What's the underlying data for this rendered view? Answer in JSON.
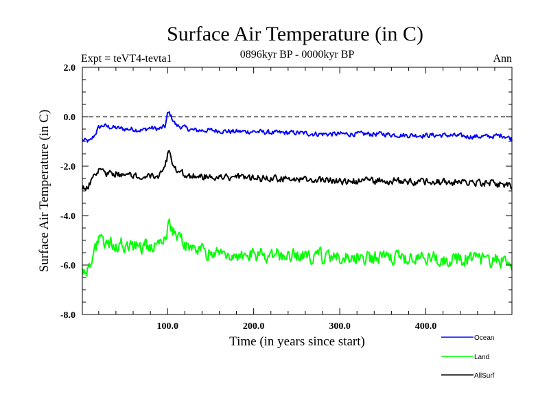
{
  "chart_data": {
    "type": "line",
    "title": "Surface Air Temperature (in C)",
    "subtitle": "0896kyr BP - 0000kyr BP",
    "experiment_label": "Expt = teVT4-tevta1",
    "period_label": "Ann",
    "xlabel": "Time (in years since start)",
    "ylabel": "Surface Air Temperature (in C)",
    "xlim": [
      1,
      500
    ],
    "ylim": [
      -8.0,
      2.0
    ],
    "x_ticks": [
      100,
      200,
      300,
      400
    ],
    "x_tick_labels": [
      "100.0",
      "200.0",
      "300.0",
      "400.0"
    ],
    "y_ticks": [
      2,
      0,
      -2,
      -4,
      -6,
      -8
    ],
    "y_tick_labels": [
      "2.0",
      "0.0",
      "-2.0",
      "-4.0",
      "-6.0",
      "-8.0"
    ],
    "reference_line": 0.0,
    "series": [
      {
        "name": "Ocean",
        "color": "#0000ff",
        "x": [
          1,
          10,
          15,
          20,
          25,
          30,
          40,
          50,
          60,
          70,
          80,
          90,
          97,
          100,
          102,
          105,
          110,
          120,
          130,
          150,
          175,
          200,
          225,
          250,
          275,
          300,
          325,
          350,
          375,
          400,
          425,
          450,
          475,
          490,
          500
        ],
        "values": [
          -0.95,
          -1.0,
          -0.75,
          -0.45,
          -0.35,
          -0.4,
          -0.45,
          -0.5,
          -0.5,
          -0.55,
          -0.45,
          -0.5,
          -0.4,
          0.1,
          0.15,
          -0.05,
          -0.35,
          -0.45,
          -0.55,
          -0.55,
          -0.6,
          -0.6,
          -0.65,
          -0.65,
          -0.7,
          -0.7,
          -0.7,
          -0.7,
          -0.75,
          -0.75,
          -0.75,
          -0.8,
          -0.8,
          -0.75,
          -0.9
        ]
      },
      {
        "name": "Land",
        "color": "#00ff00",
        "x": [
          1,
          5,
          10,
          15,
          20,
          25,
          30,
          40,
          50,
          60,
          70,
          80,
          90,
          97,
          100,
          102,
          105,
          110,
          120,
          130,
          150,
          175,
          200,
          225,
          250,
          275,
          300,
          325,
          350,
          375,
          400,
          425,
          450,
          475,
          490,
          500
        ],
        "values": [
          -6.1,
          -6.3,
          -5.9,
          -5.5,
          -5.1,
          -5.0,
          -5.1,
          -5.15,
          -5.2,
          -5.2,
          -5.25,
          -5.2,
          -5.2,
          -5.0,
          -4.4,
          -4.2,
          -4.6,
          -4.8,
          -5.2,
          -5.4,
          -5.5,
          -5.55,
          -5.6,
          -5.6,
          -5.65,
          -5.65,
          -5.7,
          -5.7,
          -5.7,
          -5.75,
          -5.7,
          -5.75,
          -5.75,
          -5.8,
          -5.8,
          -5.9
        ]
      },
      {
        "name": "AllSurf",
        "color": "#000000",
        "x": [
          1,
          5,
          10,
          15,
          20,
          25,
          30,
          40,
          50,
          60,
          70,
          80,
          90,
          97,
          100,
          102,
          105,
          110,
          120,
          130,
          150,
          175,
          200,
          225,
          250,
          275,
          300,
          325,
          350,
          375,
          400,
          425,
          450,
          475,
          490,
          500
        ],
        "values": [
          -2.85,
          -3.0,
          -2.7,
          -2.4,
          -2.1,
          -2.2,
          -2.3,
          -2.3,
          -2.35,
          -2.35,
          -2.35,
          -2.35,
          -2.35,
          -2.1,
          -1.6,
          -1.5,
          -1.9,
          -2.2,
          -2.35,
          -2.4,
          -2.45,
          -2.45,
          -2.5,
          -2.5,
          -2.55,
          -2.55,
          -2.6,
          -2.6,
          -2.6,
          -2.6,
          -2.65,
          -2.65,
          -2.65,
          -2.7,
          -2.75,
          -2.8
        ]
      }
    ],
    "legend": [
      "Ocean",
      "Land",
      "AllSurf"
    ],
    "legend_position": "bottom-right"
  }
}
